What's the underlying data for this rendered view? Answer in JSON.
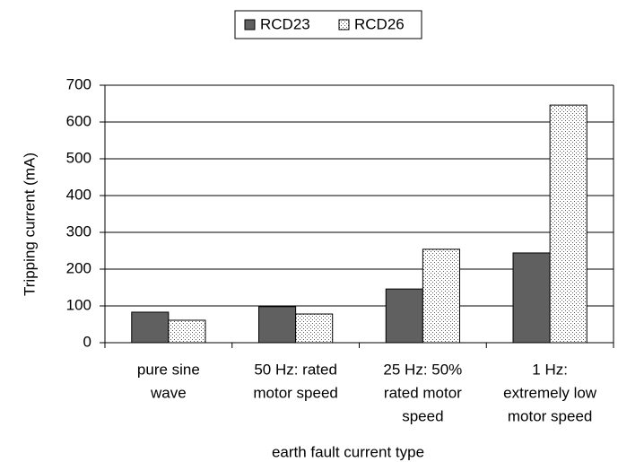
{
  "chart_data": {
    "type": "bar",
    "y_label": "Tripping current (mA)",
    "x_label": "earth fault current type",
    "categories": [
      [
        "pure sine",
        "wave"
      ],
      [
        "50 Hz: rated",
        "motor speed"
      ],
      [
        "25 Hz: 50%",
        "rated motor",
        "speed"
      ],
      [
        "1 Hz:",
        "extremely low",
        "motor speed"
      ]
    ],
    "series": [
      {
        "name": "RCD23",
        "color": "#606060",
        "pattern": "solid",
        "values": [
          83,
          98,
          146,
          244
        ]
      },
      {
        "name": "RCD26",
        "color": "#ffffff",
        "pattern": "dots",
        "values": [
          61,
          78,
          254,
          646
        ]
      }
    ],
    "ylim": [
      0,
      700
    ],
    "yticks": [
      0,
      100,
      200,
      300,
      400,
      500,
      600,
      700
    ],
    "grid": true,
    "legend": "top"
  }
}
